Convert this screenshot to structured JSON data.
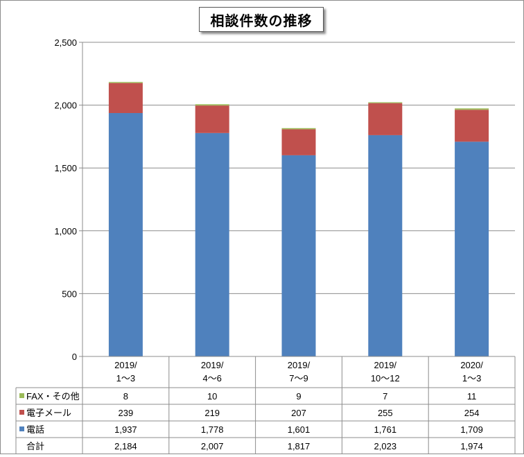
{
  "colors": {
    "phone": "#4f81bd",
    "email": "#c0504d",
    "fax": "#9bbb59",
    "gridline": "#8c8c8c",
    "text": "#000000"
  },
  "chart_data": {
    "type": "bar",
    "stacked": true,
    "title": "相談件数の推移",
    "xlabel": "",
    "ylabel": "",
    "ylim": [
      0,
      2500
    ],
    "yticks": [
      0,
      500,
      1000,
      1500,
      2000,
      2500
    ],
    "ytick_labels": [
      "0",
      "500",
      "1,000",
      "1,500",
      "2,000",
      "2,500"
    ],
    "grid": true,
    "legend": "data-table",
    "categories": [
      [
        "2019/",
        "1～3"
      ],
      [
        "2019/",
        "4～6"
      ],
      [
        "2019/",
        "7～9"
      ],
      [
        "2019/",
        "10～12"
      ],
      [
        "2020/",
        "1～3"
      ]
    ],
    "series": [
      {
        "name": "電話",
        "color": "#4f81bd",
        "values": [
          1937,
          1778,
          1601,
          1761,
          1709
        ],
        "labels": [
          "1,937",
          "1,778",
          "1,601",
          "1,761",
          "1,709"
        ]
      },
      {
        "name": "電子メール",
        "color": "#c0504d",
        "values": [
          239,
          219,
          207,
          255,
          254
        ],
        "labels": [
          "239",
          "219",
          "207",
          "255",
          "254"
        ]
      },
      {
        "name": "FAX・その他",
        "color": "#9bbb59",
        "values": [
          8,
          10,
          9,
          7,
          11
        ],
        "labels": [
          "8",
          "10",
          "9",
          "7",
          "11"
        ]
      }
    ],
    "table_rows": [
      {
        "series_index": 2
      },
      {
        "series_index": 1
      },
      {
        "series_index": 0
      }
    ],
    "total": {
      "name": "合計",
      "values": [
        2184,
        2007,
        1817,
        2023,
        1974
      ],
      "labels": [
        "2,184",
        "2,007",
        "1,817",
        "2,023",
        "1,974"
      ]
    }
  }
}
